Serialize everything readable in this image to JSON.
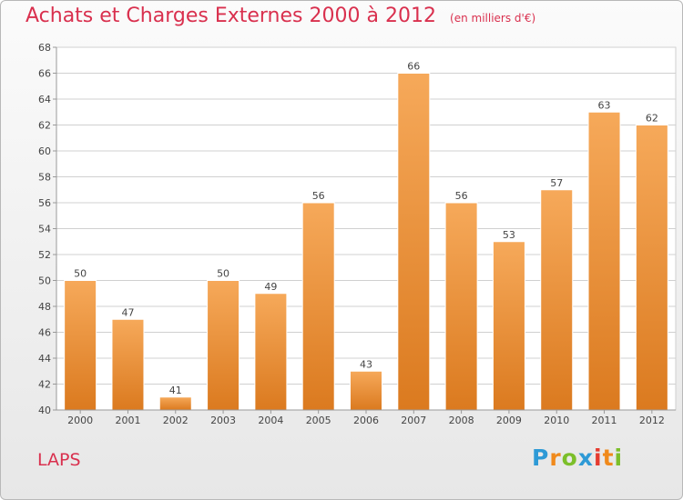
{
  "title": "Achats et Charges Externes 2000 à 2012",
  "subtitle": "(en milliers d'€)",
  "place": "LAPS",
  "brand": {
    "text": "Proxiti",
    "letters": [
      {
        "char": "P",
        "color": "#2e9ad6"
      },
      {
        "char": "r",
        "color": "#f08a1c"
      },
      {
        "char": "o",
        "color": "#7cbf2a"
      },
      {
        "char": "x",
        "color": "#2e9ad6"
      },
      {
        "char": "i",
        "color": "#e53b2f"
      },
      {
        "char": "t",
        "color": "#f08a1c"
      },
      {
        "char": "i",
        "color": "#7cbf2a"
      }
    ]
  },
  "colors": {
    "bar_light": "#f6a95a",
    "bar_dark": "#db7a1f",
    "title": "#d9304e",
    "grid": "#d0d0d0"
  },
  "chart_data": {
    "type": "bar",
    "title": "Achats et Charges Externes 2000 à 2012",
    "subtitle": "(en milliers d'€)",
    "categories": [
      "2000",
      "2001",
      "2002",
      "2003",
      "2004",
      "2005",
      "2006",
      "2007",
      "2008",
      "2009",
      "2010",
      "2011",
      "2012"
    ],
    "values": [
      50,
      47,
      41,
      50,
      49,
      56,
      43,
      66,
      56,
      53,
      57,
      63,
      62
    ],
    "ylim": [
      40,
      68
    ],
    "yticks": [
      40,
      42,
      44,
      46,
      48,
      50,
      52,
      54,
      56,
      58,
      60,
      62,
      64,
      66,
      68
    ],
    "grid": true,
    "legend": "none"
  }
}
